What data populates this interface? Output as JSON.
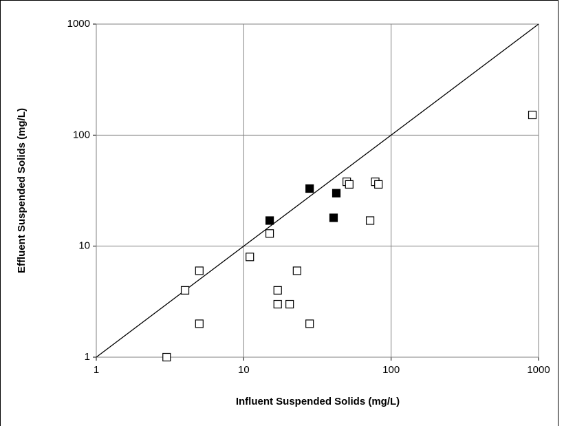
{
  "chart_data": {
    "type": "scatter",
    "x_label": "Influent Suspended Solids (mg/L)",
    "y_label": "Effluent Suspended Solids (mg/L)",
    "xlim": [
      1,
      1000
    ],
    "ylim": [
      1,
      1000
    ],
    "xticks": [
      1,
      10,
      100,
      1000
    ],
    "yticks": [
      1,
      10,
      100,
      1000
    ],
    "xlog": true,
    "ylog": true,
    "grid": true,
    "diagonal": true,
    "series": [
      {
        "color": "#ffffff",
        "x": [
          3,
          4,
          5,
          5,
          11,
          15,
          23,
          17,
          17,
          20.5,
          28,
          50,
          52,
          78,
          82,
          72,
          908
        ],
        "values": [
          1,
          4,
          6,
          2,
          8,
          13,
          6,
          4,
          3,
          3,
          2,
          38,
          36,
          38,
          36,
          17,
          152
        ]
      },
      {
        "color": "#000000",
        "x": [
          15,
          28,
          42.5,
          40.7
        ],
        "values": [
          17,
          33,
          30,
          18
        ]
      }
    ]
  }
}
